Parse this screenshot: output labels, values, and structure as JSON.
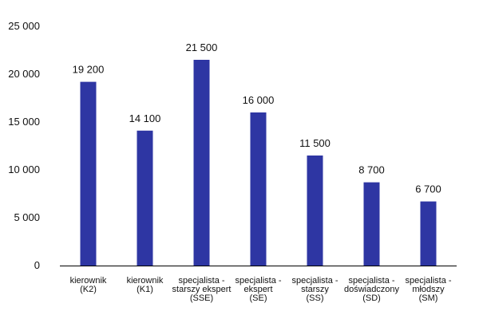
{
  "chart_data": {
    "type": "bar",
    "title": "",
    "xlabel": "",
    "ylabel": "",
    "ylim": [
      0,
      25000
    ],
    "yticks": [
      0,
      5000,
      10000,
      15000,
      20000,
      25000
    ],
    "ytick_labels": [
      "0",
      "5 000",
      "10 000",
      "15 000",
      "20 000",
      "25 000"
    ],
    "grid": false,
    "categories": [
      [
        "kierownik",
        "(K2)"
      ],
      [
        "kierownik",
        "(K1)"
      ],
      [
        "specjalista -",
        "starszy ekspert",
        "(SSE)"
      ],
      [
        "specjalista -",
        "ekspert",
        "(SE)"
      ],
      [
        "specjalista -",
        "starszy",
        "(SS)"
      ],
      [
        "specjalista -",
        "doświadczony",
        "(SD)"
      ],
      [
        "specjalista -",
        "młodszy",
        "(SM)"
      ]
    ],
    "values": [
      19200,
      14100,
      21500,
      16000,
      11500,
      8700,
      6700
    ],
    "data_labels": [
      "19 200",
      "14 100",
      "21 500",
      "16 000",
      "11 500",
      "8 700",
      "6 700"
    ],
    "bar_color": "#2e36a3",
    "axis_color": "#000000"
  }
}
